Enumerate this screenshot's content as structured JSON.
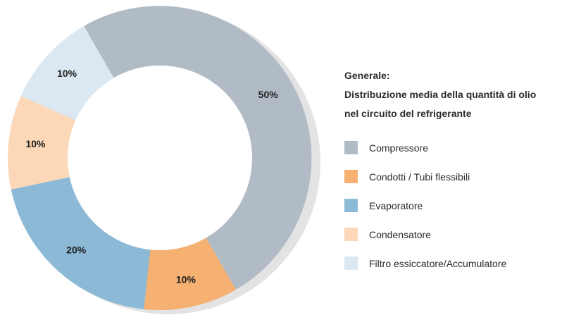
{
  "chart_data": {
    "type": "pie",
    "title": "Generale:",
    "subtitle": "Distribuzione media della quantità di olio nel circuito del refrigerante",
    "subtitle_lines": [
      "Distribuzione media della quantità di olio",
      "nel circuito del refrigerante"
    ],
    "legend_position": "right",
    "categories": [
      "Compressore",
      "Condotti / Tubi flessibili",
      "Evaporatore",
      "Condensatore",
      "Filtro essiccatore/Accumulatore"
    ],
    "values": [
      50,
      10,
      20,
      10,
      10
    ],
    "data_labels": [
      "50%",
      "10%",
      "20%",
      "10%",
      "10%"
    ],
    "colors": [
      "#b1bbc5",
      "#f5b072",
      "#8cb9d6",
      "#fcd7b8",
      "#dbe8f1"
    ],
    "donut": true
  }
}
